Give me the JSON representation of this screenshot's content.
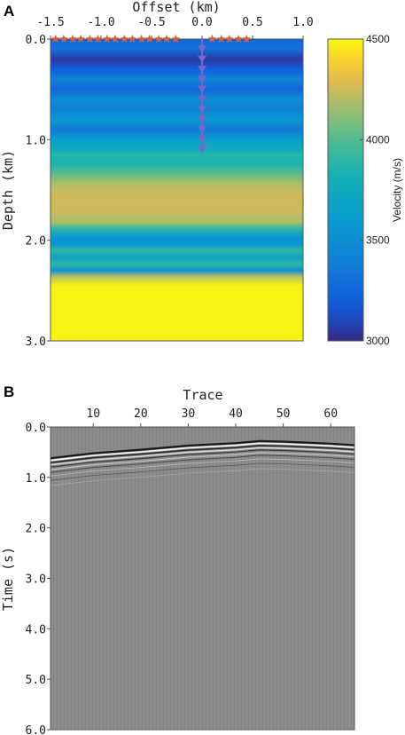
{
  "chart_data": [
    {
      "panel_label": "A",
      "type": "heatmap",
      "xlabel": "Offset (km)",
      "ylabel": "Depth (km)",
      "colorbar_label": "Velocity (m/s)",
      "x_ticks": [
        "-1.5",
        "-1.0",
        "-0.5",
        "0.0",
        "0.5",
        "1.0"
      ],
      "x_tick_values": [
        -1.5,
        -1.0,
        -0.5,
        0.0,
        0.5,
        1.0
      ],
      "y_ticks": [
        "0.0",
        "1.0",
        "2.0",
        "3.0"
      ],
      "y_tick_values": [
        0.0,
        1.0,
        2.0,
        3.0
      ],
      "xlim": [
        -1.5,
        1.0
      ],
      "ylim": [
        0.0,
        3.0
      ],
      "colorbar_ticks": [
        "3000",
        "3500",
        "4000",
        "4500"
      ],
      "colorbar_tick_values": [
        3000,
        3500,
        4000,
        4500
      ],
      "colorbar_range": [
        3000,
        4500
      ],
      "colormap": "parula",
      "velocity_profile": [
        {
          "depth": 0.0,
          "velocity": 3250
        },
        {
          "depth": 0.1,
          "velocity": 3300
        },
        {
          "depth": 0.2,
          "velocity": 3050
        },
        {
          "depth": 0.3,
          "velocity": 3200
        },
        {
          "depth": 0.4,
          "velocity": 3420
        },
        {
          "depth": 0.5,
          "velocity": 3250
        },
        {
          "depth": 0.6,
          "velocity": 3500
        },
        {
          "depth": 0.7,
          "velocity": 3400
        },
        {
          "depth": 0.8,
          "velocity": 3580
        },
        {
          "depth": 0.9,
          "velocity": 3350
        },
        {
          "depth": 1.0,
          "velocity": 3620
        },
        {
          "depth": 1.1,
          "velocity": 3750
        },
        {
          "depth": 1.15,
          "velocity": 3880
        },
        {
          "depth": 1.25,
          "velocity": 3850
        },
        {
          "depth": 1.35,
          "velocity": 4050
        },
        {
          "depth": 1.45,
          "velocity": 4200
        },
        {
          "depth": 1.55,
          "velocity": 4250
        },
        {
          "depth": 1.7,
          "velocity": 4250
        },
        {
          "depth": 1.82,
          "velocity": 4180
        },
        {
          "depth": 1.9,
          "velocity": 3850
        },
        {
          "depth": 1.98,
          "velocity": 3520
        },
        {
          "depth": 2.05,
          "velocity": 3600
        },
        {
          "depth": 2.1,
          "velocity": 3900
        },
        {
          "depth": 2.17,
          "velocity": 3700
        },
        {
          "depth": 2.24,
          "velocity": 3900
        },
        {
          "depth": 2.3,
          "velocity": 3500
        },
        {
          "depth": 2.36,
          "velocity": 4200
        },
        {
          "depth": 2.45,
          "velocity": 4480
        },
        {
          "depth": 3.0,
          "velocity": 4480
        }
      ],
      "sources": {
        "marker": "star",
        "color": "#d9603a",
        "depth": 0.0,
        "offsets": [
          -1.45,
          -1.37,
          -1.28,
          -1.2,
          -1.11,
          -1.03,
          -0.94,
          -0.86,
          -0.77,
          -0.69,
          -0.6,
          -0.52,
          -0.43,
          -0.35,
          -0.26,
          0.1,
          0.19,
          0.27,
          0.36,
          0.44
        ]
      },
      "receivers": {
        "marker": "triangle-down",
        "color": "#7b64c8",
        "offset": 0.0,
        "depths": [
          0.1,
          0.2,
          0.3,
          0.4,
          0.5,
          0.6,
          0.7,
          0.8,
          0.9,
          1.0,
          1.1
        ]
      }
    },
    {
      "panel_label": "B",
      "type": "heatmap",
      "xlabel": "Trace",
      "ylabel": "Time (s)",
      "x_ticks": [
        "10",
        "20",
        "30",
        "40",
        "50",
        "60"
      ],
      "x_tick_values": [
        10,
        20,
        30,
        40,
        50,
        60
      ],
      "xlim": [
        1,
        65
      ],
      "y_ticks": [
        "0.0",
        "1.0",
        "2.0",
        "3.0",
        "4.0",
        "5.0",
        "6.0"
      ],
      "y_tick_values": [
        0.0,
        1.0,
        2.0,
        3.0,
        4.0,
        5.0,
        6.0
      ],
      "ylim": [
        0.0,
        6.0
      ],
      "colormap": "gray",
      "first_arrival": [
        {
          "trace": 1,
          "time": 0.62
        },
        {
          "trace": 10,
          "time": 0.52
        },
        {
          "trace": 20,
          "time": 0.45
        },
        {
          "trace": 30,
          "time": 0.37
        },
        {
          "trace": 40,
          "time": 0.32
        },
        {
          "trace": 45,
          "time": 0.28
        },
        {
          "trace": 50,
          "time": 0.29
        },
        {
          "trace": 55,
          "time": 0.31
        },
        {
          "trace": 60,
          "time": 0.33
        },
        {
          "trace": 65,
          "time": 0.36
        }
      ]
    }
  ]
}
